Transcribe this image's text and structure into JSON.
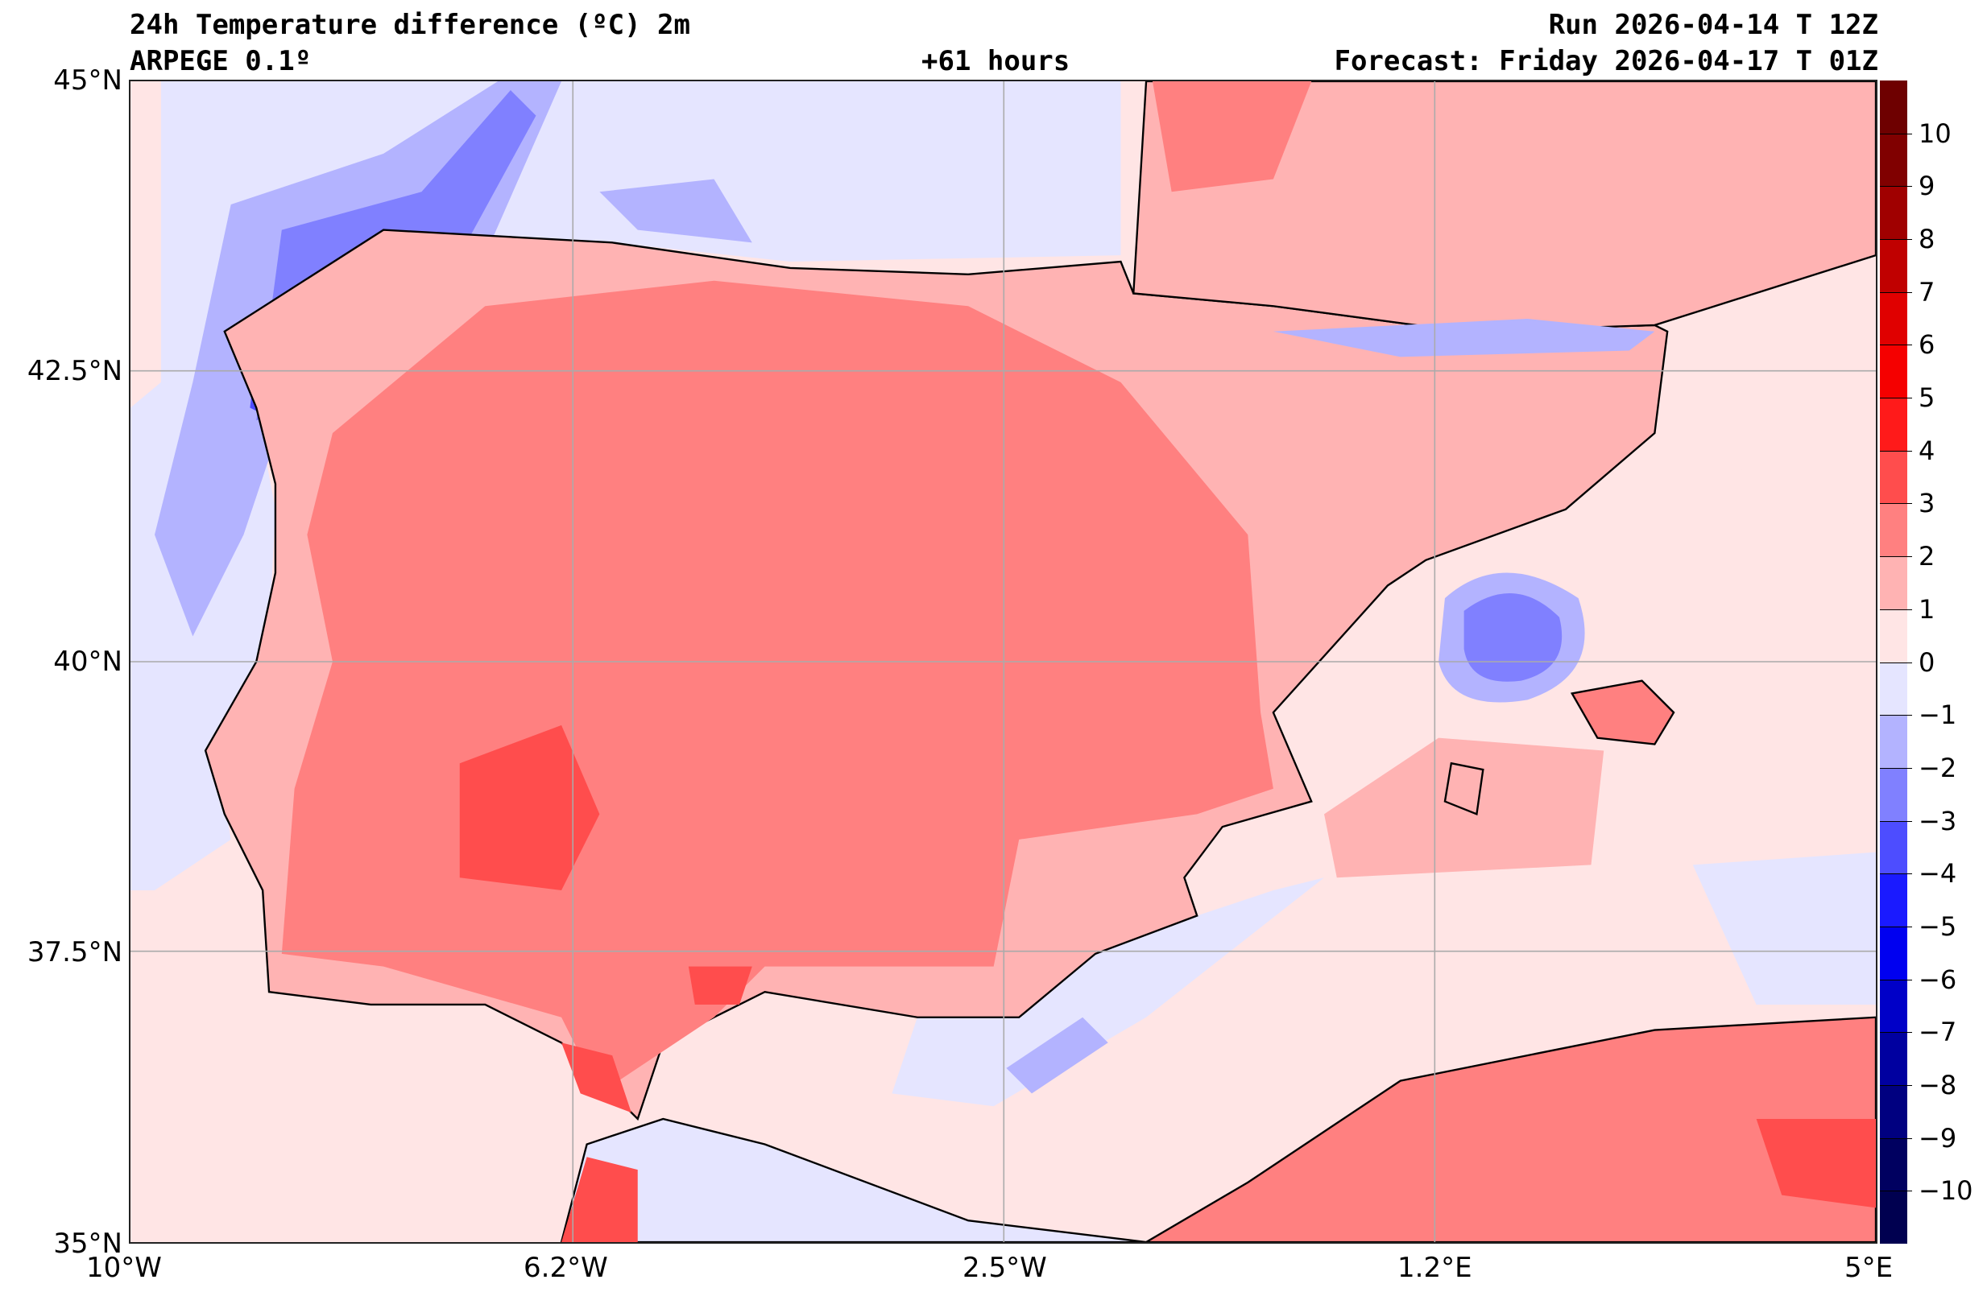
{
  "header": {
    "title": "24h Temperature difference (ºC) 2m",
    "model": "ARPEGE 0.1º",
    "lead_time": "+61 hours",
    "run": "Run 2026-04-14 T 12Z",
    "forecast": "Forecast: Friday 2026-04-17 T 01Z"
  },
  "axes": {
    "lat_labels": [
      "45°N",
      "42.5°N",
      "40°N",
      "37.5°N",
      "35°N"
    ],
    "lon_labels": [
      "10°W",
      "6.2°W",
      "2.5°W",
      "1.2°E",
      "5°E"
    ]
  },
  "colorbar": {
    "labels": [
      "10",
      "9",
      "8",
      "7",
      "6",
      "5",
      "4",
      "3",
      "2",
      "1",
      "0",
      "−1",
      "−2",
      "−3",
      "−4",
      "−5",
      "−6",
      "−7",
      "−8",
      "−9",
      "−10"
    ],
    "colors": [
      "#6e0000",
      "#800000",
      "#a00000",
      "#c00000",
      "#e00000",
      "#f50000",
      "#ff1a1a",
      "#ff4d4d",
      "#ff8080",
      "#ffb3b3",
      "#ffe5e5",
      "#e5e5ff",
      "#b3b3ff",
      "#8080ff",
      "#4d4dff",
      "#1a1aff",
      "#0000f0",
      "#0000c8",
      "#0000a0",
      "#000080",
      "#000060",
      "#000050"
    ]
  }
}
